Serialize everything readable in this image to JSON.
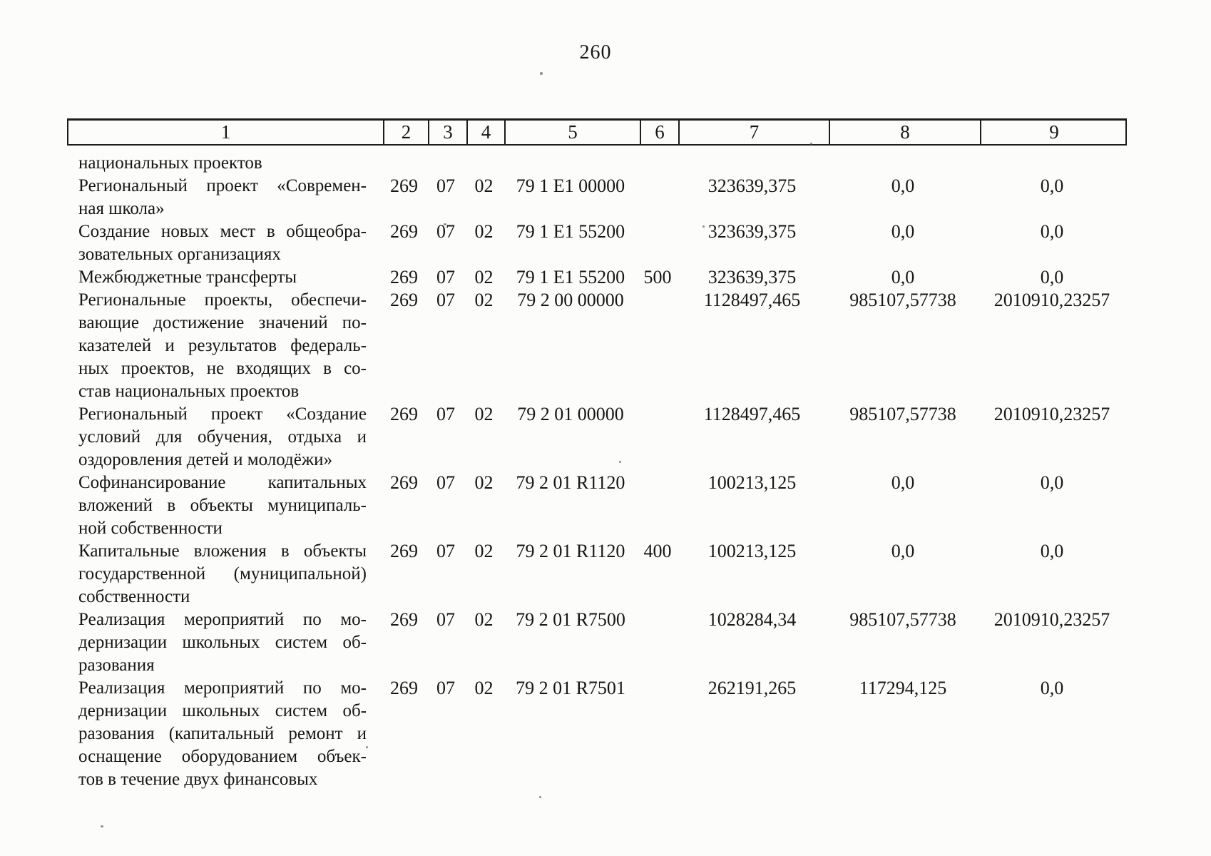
{
  "page_number": "260",
  "table": {
    "header_columns": [
      "1",
      "2",
      "3",
      "4",
      "5",
      "6",
      "7",
      "8",
      "9"
    ],
    "rows": [
      {
        "lines": [
          "национальных проектов"
        ],
        "values": [
          "",
          "",
          "",
          "",
          "",
          "",
          "",
          ""
        ]
      },
      {
        "lines": [
          "Региональный проект «Современ-",
          "ная школа»"
        ],
        "values": [
          "269",
          "07",
          "02",
          "79 1 Е1 00000",
          "",
          "323639,375",
          "0,0",
          "0,0"
        ]
      },
      {
        "lines": [
          "Создание новых мест в общеобра-",
          "зовательных организациях"
        ],
        "values": [
          "269",
          "07",
          "02",
          "79 1 Е1 55200",
          "",
          "323639,375",
          "0,0",
          "0,0"
        ]
      },
      {
        "lines": [
          "Межбюджетные трансферты"
        ],
        "values": [
          "269",
          "07",
          "02",
          "79 1 Е1 55200",
          "500",
          "323639,375",
          "0,0",
          "0,0"
        ]
      },
      {
        "lines": [
          "Региональные проекты, обеспечи-",
          "вающие достижение значений по-",
          "казателей и результатов федераль-",
          "ных проектов, не входящих в со-",
          "став национальных проектов"
        ],
        "values": [
          "269",
          "07",
          "02",
          "79 2 00 00000",
          "",
          "1128497,465",
          "985107,57738",
          "2010910,23257"
        ]
      },
      {
        "lines": [
          "Региональный проект «Создание",
          "условий для обучения, отдыха и",
          "оздоровления детей и молодёжи»"
        ],
        "values": [
          "269",
          "07",
          "02",
          "79 2 01 00000",
          "",
          "1128497,465",
          "985107,57738",
          "2010910,23257"
        ]
      },
      {
        "lines": [
          "Софинансирование капитальных",
          "вложений в объекты муниципаль-",
          "ной собственности"
        ],
        "values": [
          "269",
          "07",
          "02",
          "79 2 01 R1120",
          "",
          "100213,125",
          "0,0",
          "0,0"
        ]
      },
      {
        "lines": [
          "Капитальные вложения в объекты",
          "государственной (муниципальной)",
          "собственности"
        ],
        "values": [
          "269",
          "07",
          "02",
          "79 2 01 R1120",
          "400",
          "100213,125",
          "0,0",
          "0,0"
        ]
      },
      {
        "lines": [
          "Реализация мероприятий по мо-",
          "дернизации школьных систем об-",
          "разования"
        ],
        "values": [
          "269",
          "07",
          "02",
          "79 2 01 R7500",
          "",
          "1028284,34",
          "985107,57738",
          "2010910,23257"
        ]
      },
      {
        "lines": [
          "Реализация мероприятий по мо-",
          "дернизации школьных систем об-",
          "разования (капитальный ремонт и",
          "оснащение оборудованием объек-",
          "тов в течение двух финансовых"
        ],
        "values": [
          "269",
          "07",
          "02",
          "79 2 01 R7501",
          "",
          "262191,265",
          "117294,125",
          "0,0"
        ]
      }
    ]
  }
}
